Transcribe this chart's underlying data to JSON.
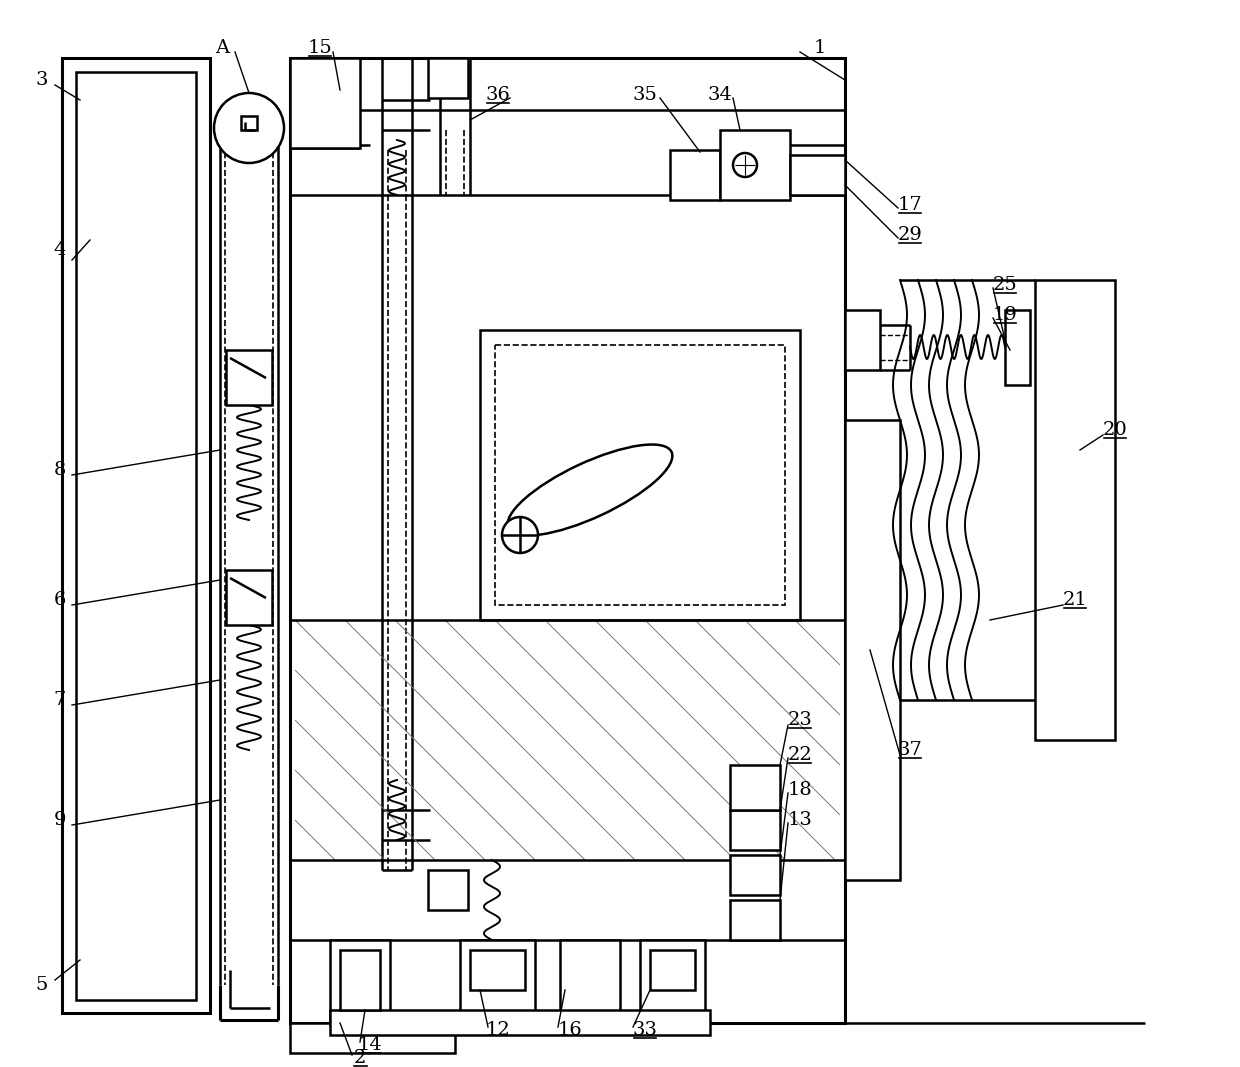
{
  "bg_color": "#ffffff",
  "lw": 1.8,
  "tlw": 2.2,
  "fig_width": 12.4,
  "fig_height": 10.67,
  "underlined_labels": [
    "2",
    "14",
    "15",
    "17",
    "19",
    "20",
    "21",
    "22",
    "23",
    "25",
    "29",
    "33",
    "36",
    "37"
  ]
}
